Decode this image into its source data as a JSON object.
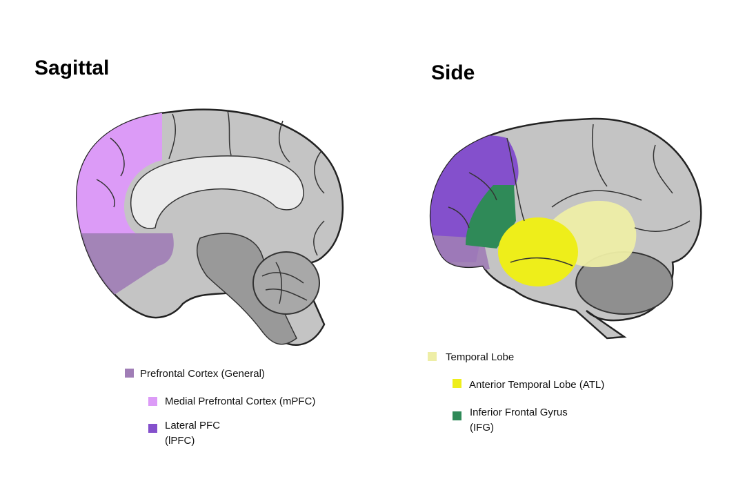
{
  "panels": [
    {
      "title": "Sagittal",
      "legend": [
        {
          "label": [
            "Prefrontal Cortex (General)"
          ],
          "color": "#a07db6"
        },
        {
          "label": [
            "Medial Prefrontal Cortex (mPFC)"
          ],
          "color": "#dc9bf7"
        },
        {
          "label": [
            "Lateral PFC",
            "(lPFC)"
          ],
          "color": "#8450cc"
        }
      ]
    },
    {
      "title": "Side",
      "legend": [
        {
          "label": [
            "Temporal Lobe"
          ],
          "color": "#eeeea6"
        },
        {
          "label": [
            "Anterior Temporal Lobe (ATL)"
          ],
          "color": "#eeee1a"
        },
        {
          "label": [
            "Inferior Frontal Gyrus",
            "(IFG)"
          ],
          "color": "#2f8a58"
        }
      ]
    }
  ]
}
